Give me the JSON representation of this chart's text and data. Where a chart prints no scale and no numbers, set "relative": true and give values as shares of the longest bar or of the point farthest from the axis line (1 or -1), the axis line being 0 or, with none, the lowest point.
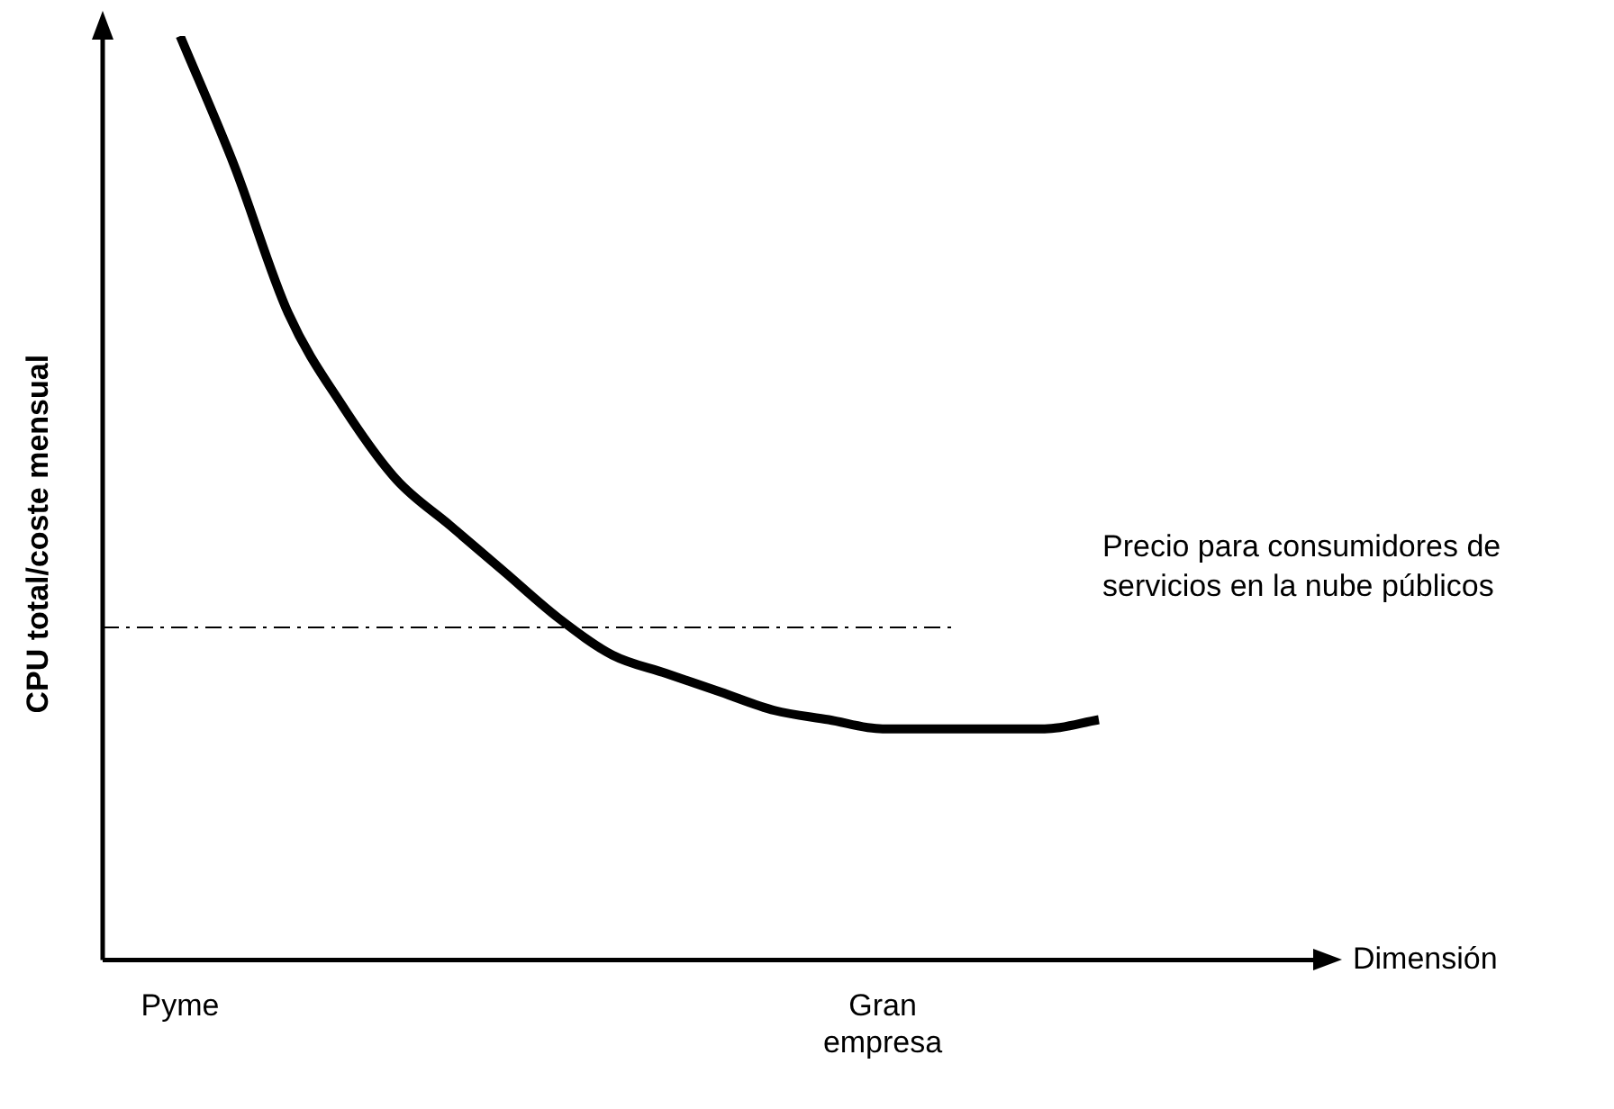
{
  "chart_data": {
    "type": "line",
    "relative": true,
    "annotations": [
      "Dimensión"
    ],
    "ylabel": "CPU total/coste mensual",
    "categories": [
      "Pyme",
      null,
      null,
      null,
      null,
      null,
      null,
      null,
      null,
      null,
      null,
      null,
      null,
      "Gran empresa",
      null,
      null,
      null,
      null
    ],
    "series": [
      {
        "color": "#000000",
        "values": [
          1.0,
          0.86,
          0.7,
          0.6,
          0.52,
          0.47,
          0.42,
          0.37,
          0.33,
          0.31,
          0.29,
          0.27,
          0.26,
          0.25,
          0.25,
          0.25,
          0.25,
          0.26
        ]
      }
    ],
    "ref_lines": [
      {
        "axis": "y",
        "value": 0.36,
        "label": "Precio para consumidores de servicios en la nube públicos",
        "color": "#000000",
        "line_style": "dashed"
      }
    ],
    "legend": false,
    "grid": false,
    "marker": "none",
    "line_style": "solid"
  }
}
